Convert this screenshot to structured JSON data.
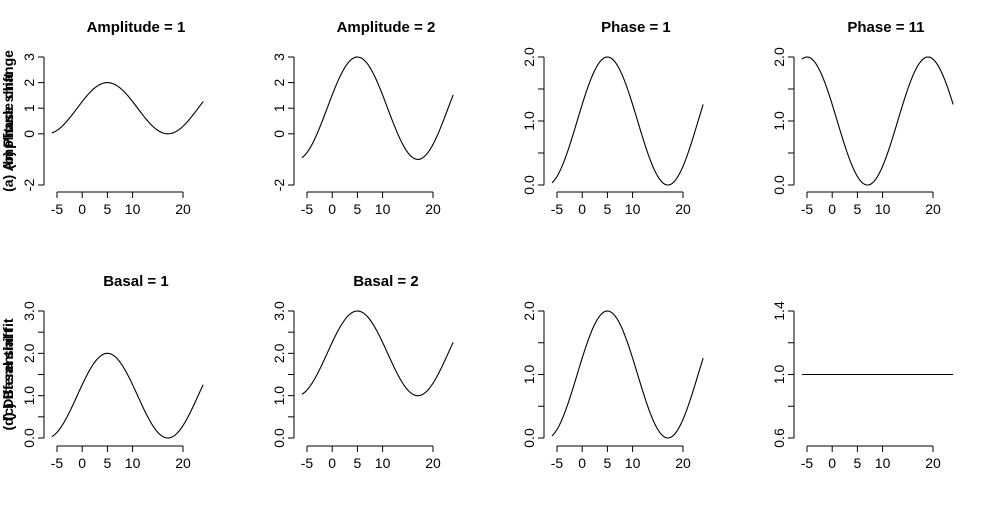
{
  "chart_data": [
    {
      "type": "line",
      "title": "Amplitude = 1",
      "ylabel": "(a) Amplitude change",
      "xticks": [
        -5,
        0,
        5,
        10,
        20
      ],
      "xlim": [
        -5,
        24
      ],
      "yticks": [
        -2,
        0,
        1,
        2,
        3
      ],
      "ylim": [
        -2,
        3
      ],
      "curve": {
        "basal": 1,
        "amplitude": 1,
        "phase": 5,
        "period": 24
      },
      "x": [
        -6,
        5,
        17,
        24
      ],
      "y": [
        0.13,
        2,
        0,
        1.5
      ]
    },
    {
      "type": "line",
      "title": "Amplitude = 2",
      "ylabel": "",
      "xticks": [
        -5,
        0,
        5,
        10,
        20
      ],
      "xlim": [
        -5,
        24
      ],
      "yticks": [
        -2,
        0,
        1,
        2,
        3
      ],
      "ylim": [
        -2,
        3
      ],
      "curve": {
        "basal": 1,
        "amplitude": 2,
        "phase": 5,
        "period": 24
      },
      "x": [
        -6,
        5,
        17,
        24
      ],
      "y": [
        -0.73,
        3,
        -1,
        2
      ]
    },
    {
      "type": "line",
      "title": "Phase = 1",
      "ylabel": "(b) Phase shift",
      "xticks": [
        -5,
        0,
        5,
        10,
        20
      ],
      "xlim": [
        -5,
        24
      ],
      "yticks": [
        0.0,
        0.5,
        1.0,
        1.5,
        2.0
      ],
      "ytick_labels": [
        "0.0",
        "",
        "1.0",
        "",
        "2.0"
      ],
      "ylim": [
        0,
        2
      ],
      "curve": {
        "basal": 1,
        "amplitude": 1,
        "phase": 5,
        "period": 24
      },
      "x": [
        -6,
        5,
        17,
        24
      ],
      "y": [
        0.13,
        2,
        0,
        1.5
      ]
    },
    {
      "type": "line",
      "title": "Phase = 11",
      "ylabel": "",
      "xticks": [
        -5,
        0,
        5,
        10,
        20
      ],
      "xlim": [
        -5,
        24
      ],
      "yticks": [
        0.0,
        0.5,
        1.0,
        1.5,
        2.0
      ],
      "ytick_labels": [
        "0.0",
        "",
        "1.0",
        "",
        "2.0"
      ],
      "ylim": [
        0,
        2
      ],
      "curve": {
        "basal": 1,
        "amplitude": 1,
        "phase": 19,
        "period": 24
      },
      "x": [
        -6,
        7,
        19,
        24
      ],
      "y": [
        2,
        0,
        2,
        1
      ]
    },
    {
      "type": "line",
      "title": "Basal = 1",
      "ylabel": "(c) Basal shift",
      "xticks": [
        -5,
        0,
        5,
        10,
        20
      ],
      "xlim": [
        -5,
        24
      ],
      "yticks": [
        0.0,
        0.5,
        1.0,
        1.5,
        2.0,
        2.5,
        3.0
      ],
      "ytick_labels": [
        "0.0",
        "",
        "1.0",
        "",
        "2.0",
        "",
        "3.0"
      ],
      "ylim": [
        0,
        3
      ],
      "curve": {
        "basal": 1,
        "amplitude": 1,
        "phase": 5,
        "period": 24
      },
      "x": [
        -6,
        5,
        17,
        24
      ],
      "y": [
        0.13,
        2,
        0,
        1.5
      ]
    },
    {
      "type": "line",
      "title": "Basal = 2",
      "ylabel": "",
      "xticks": [
        -5,
        0,
        5,
        10,
        20
      ],
      "xlim": [
        -5,
        24
      ],
      "yticks": [
        0.0,
        0.5,
        1.0,
        1.5,
        2.0,
        2.5,
        3.0
      ],
      "ytick_labels": [
        "0.0",
        "",
        "1.0",
        "",
        "2.0",
        "",
        "3.0"
      ],
      "ylim": [
        0,
        3
      ],
      "curve": {
        "basal": 2,
        "amplitude": 1,
        "phase": 5,
        "period": 24
      },
      "x": [
        -6,
        5,
        17,
        24
      ],
      "y": [
        1.13,
        3,
        1,
        2.5
      ]
    },
    {
      "type": "line",
      "title": "",
      "ylabel": "(d) Differential fit",
      "xticks": [
        -5,
        0,
        5,
        10,
        20
      ],
      "xlim": [
        -5,
        24
      ],
      "yticks": [
        0.0,
        0.5,
        1.0,
        1.5,
        2.0
      ],
      "ytick_labels": [
        "0.0",
        "",
        "1.0",
        "",
        "2.0"
      ],
      "ylim": [
        0,
        2
      ],
      "curve": {
        "basal": 1,
        "amplitude": 1,
        "phase": 5,
        "period": 24
      },
      "x": [
        -6,
        5,
        17,
        24
      ],
      "y": [
        0.13,
        2,
        0,
        1.5
      ]
    },
    {
      "type": "line",
      "title": "",
      "ylabel": "",
      "xticks": [
        -5,
        0,
        5,
        10,
        20
      ],
      "xlim": [
        -5,
        24
      ],
      "yticks": [
        0.6,
        0.8,
        1.0,
        1.2,
        1.4
      ],
      "ytick_labels": [
        "0.6",
        "",
        "1.0",
        "",
        "1.4"
      ],
      "ylim": [
        0.6,
        1.4
      ],
      "curve": {
        "basal": 1,
        "amplitude": 0,
        "phase": 5,
        "period": 24
      },
      "x": [
        -6,
        24
      ],
      "y": [
        1,
        1
      ]
    }
  ]
}
